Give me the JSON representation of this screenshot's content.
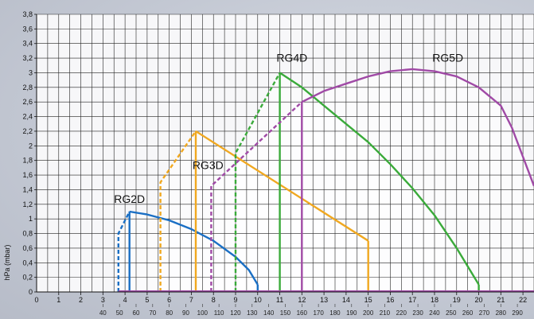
{
  "chart_data": {
    "type": "line",
    "ylabel": "hPa (mbar)",
    "xlim": [
      0,
      22.5
    ],
    "ylim": [
      0,
      3.8
    ],
    "grid": true,
    "x_ticks": [
      {
        "value": 1,
        "label": "1"
      },
      {
        "value": 2,
        "label": "2"
      },
      {
        "value": 3,
        "label": "3"
      },
      {
        "value": 4,
        "label": "4"
      },
      {
        "value": 5,
        "label": "5"
      },
      {
        "value": 6,
        "label": "6"
      },
      {
        "value": 7,
        "label": "7"
      },
      {
        "value": 8,
        "label": "8"
      },
      {
        "value": 9,
        "label": "9"
      },
      {
        "value": 10,
        "label": "10"
      },
      {
        "value": 11,
        "label": "11"
      },
      {
        "value": 12,
        "label": "12"
      },
      {
        "value": 13,
        "label": "13"
      },
      {
        "value": 14,
        "label": "14"
      },
      {
        "value": 15,
        "label": "15"
      },
      {
        "value": 16,
        "label": "16"
      },
      {
        "value": 17,
        "label": "17"
      },
      {
        "value": 18,
        "label": "18"
      },
      {
        "value": 19,
        "label": "19"
      },
      {
        "value": 20,
        "label": "20"
      },
      {
        "value": 21,
        "label": "21"
      },
      {
        "value": 22,
        "label": "22"
      }
    ],
    "x2_ticks": [
      {
        "value": 1.72,
        "label": "40"
      },
      {
        "value": 2.15,
        "label": "50"
      },
      {
        "value": 2.58,
        "label": "60"
      },
      {
        "value": 3.01,
        "label": "70"
      },
      {
        "value": 3.44,
        "label": "80"
      },
      {
        "value": 3.87,
        "label": "90"
      },
      {
        "value": 4.3,
        "label": "100"
      },
      {
        "value": 4.73,
        "label": "110"
      },
      {
        "value": 5.16,
        "label": "120"
      },
      {
        "value": 5.59,
        "label": "130"
      },
      {
        "value": 6.02,
        "label": "140"
      },
      {
        "value": 6.45,
        "label": "150"
      },
      {
        "value": 6.88,
        "label": "160"
      },
      {
        "value": 7.31,
        "label": "170"
      },
      {
        "value": 7.74,
        "label": "180"
      },
      {
        "value": 8.17,
        "label": "190"
      },
      {
        "value": 8.6,
        "label": "200"
      },
      {
        "value": 9.03,
        "label": "210"
      },
      {
        "value": 9.46,
        "label": "220"
      },
      {
        "value": 9.89,
        "label": "230"
      },
      {
        "value": 10.32,
        "label": "240"
      },
      {
        "value": 10.75,
        "label": "250"
      },
      {
        "value": 11.18,
        "label": "260"
      },
      {
        "value": 11.61,
        "label": "270"
      },
      {
        "value": 12.04,
        "label": "280"
      },
      {
        "value": 12.47,
        "label": "290"
      },
      {
        "value": 12.9,
        "label": "300"
      }
    ],
    "y_ticks": [
      {
        "value": 0,
        "label": "0"
      },
      {
        "value": 0.2,
        "label": "0,2"
      },
      {
        "value": 0.4,
        "label": "0,4"
      },
      {
        "value": 0.6,
        "label": "0,6"
      },
      {
        "value": 0.8,
        "label": "0,8"
      },
      {
        "value": 1,
        "label": "1"
      },
      {
        "value": 1.2,
        "label": "1,2"
      },
      {
        "value": 1.4,
        "label": "1,4"
      },
      {
        "value": 1.6,
        "label": "1,6"
      },
      {
        "value": 1.8,
        "label": "1,8"
      },
      {
        "value": 2,
        "label": "2"
      },
      {
        "value": 2.2,
        "label": "2,2"
      },
      {
        "value": 2.4,
        "label": "2,4"
      },
      {
        "value": 2.6,
        "label": "2,6"
      },
      {
        "value": 2.8,
        "label": "2,8"
      },
      {
        "value": 3,
        "label": "3"
      },
      {
        "value": 3.2,
        "label": "3,2"
      },
      {
        "value": 3.4,
        "label": "3,4"
      },
      {
        "value": 3.6,
        "label": "3,6"
      },
      {
        "value": 3.8,
        "label": "3,8"
      }
    ],
    "series": [
      {
        "name": "RG2D",
        "color": "#1a6fc4",
        "dashed": [
          [
            3.7,
            0
          ],
          [
            3.7,
            0.8
          ],
          [
            4.2,
            1.1
          ]
        ],
        "solid": [
          [
            4.2,
            1.1
          ],
          [
            5,
            1.06
          ],
          [
            6,
            0.98
          ],
          [
            7,
            0.86
          ],
          [
            8,
            0.7
          ],
          [
            9,
            0.48
          ],
          [
            9.6,
            0.3
          ],
          [
            10,
            0.1
          ]
        ],
        "lines": [
          [
            [
              4.2,
              0
            ],
            [
              4.2,
              1.1
            ]
          ],
          [
            [
              10,
              0.1
            ],
            [
              10,
              0
            ]
          ]
        ],
        "label_at": [
          4.2,
          1.22
        ]
      },
      {
        "name": "RG3D",
        "color": "#f0a820",
        "dashed": [
          [
            5.6,
            0
          ],
          [
            5.6,
            1.5
          ],
          [
            7.2,
            2.2
          ]
        ],
        "solid": [
          [
            7.2,
            2.2
          ],
          [
            15,
            0.7
          ]
        ],
        "lines": [
          [
            [
              7.2,
              0
            ],
            [
              7.2,
              2.2
            ]
          ],
          [
            [
              15,
              0.7
            ],
            [
              15,
              0
            ]
          ]
        ],
        "label_at": [
          7.75,
          1.68
        ]
      },
      {
        "name": "RG4D",
        "color": "#3aaa3a",
        "dashed": [
          [
            9,
            0
          ],
          [
            9,
            1.9
          ],
          [
            11,
            3
          ]
        ],
        "solid": [
          [
            11,
            3
          ],
          [
            12,
            2.8
          ],
          [
            13,
            2.55
          ],
          [
            14,
            2.3
          ],
          [
            15,
            2.05
          ],
          [
            16,
            1.75
          ],
          [
            17,
            1.42
          ],
          [
            18,
            1.05
          ],
          [
            19,
            0.6
          ],
          [
            20,
            0.1
          ]
        ],
        "lines": [
          [
            [
              11,
              0
            ],
            [
              11,
              3
            ]
          ],
          [
            [
              20,
              0.1
            ],
            [
              20,
              0
            ]
          ]
        ],
        "label_at": [
          11.55,
          3.15
        ]
      },
      {
        "name": "RG5D",
        "color": "#a04aa6",
        "dashed": [
          [
            7.9,
            0
          ],
          [
            7.9,
            1.45
          ],
          [
            12,
            2.6
          ]
        ],
        "solid": [
          [
            12,
            2.6
          ],
          [
            13,
            2.75
          ],
          [
            14,
            2.85
          ],
          [
            15,
            2.95
          ],
          [
            16,
            3.02
          ],
          [
            17,
            3.05
          ],
          [
            18,
            3.02
          ],
          [
            19,
            2.95
          ],
          [
            20,
            2.8
          ],
          [
            21,
            2.55
          ],
          [
            21.5,
            2.25
          ],
          [
            22,
            1.85
          ],
          [
            22.5,
            1.45
          ]
        ],
        "lines": [
          [
            [
              12,
              0
            ],
            [
              12,
              2.6
            ]
          ]
        ],
        "label_at": [
          18.6,
          3.15
        ]
      }
    ],
    "baseline_color": "#a04aa6"
  }
}
